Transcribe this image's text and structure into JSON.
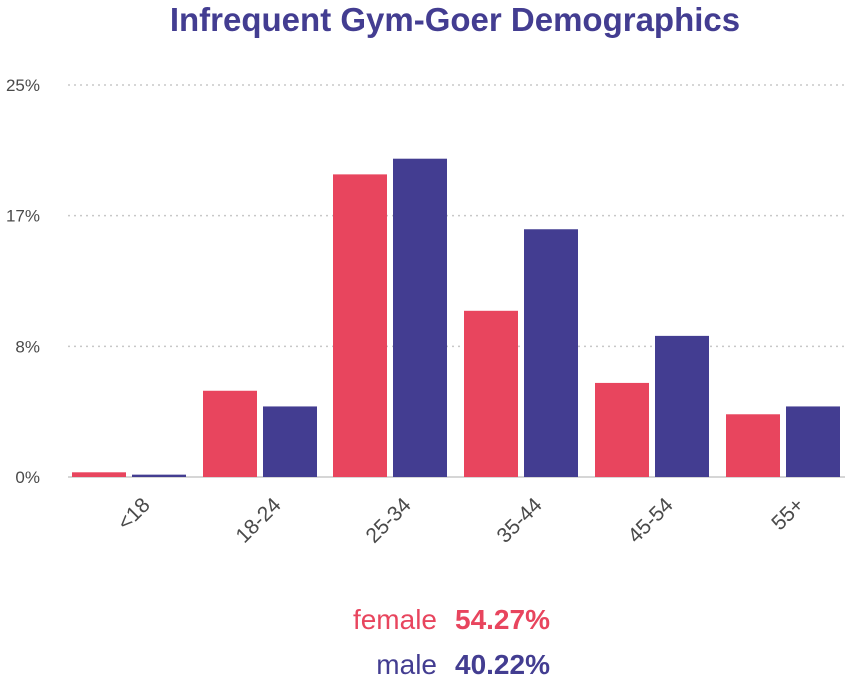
{
  "colors": {
    "female": "#e8455e",
    "male": "#433d91",
    "title": "#433d91"
  },
  "chart_data": {
    "type": "bar",
    "title": "Infrequent Gym-Goer Demographics",
    "xlabel": "",
    "ylabel": "",
    "categories": [
      "<18",
      "18-24",
      "25-34",
      "35-44",
      "45-54",
      "55+"
    ],
    "y_ticks": [
      "0%",
      "8%",
      "17%",
      "25%"
    ],
    "y_tick_values": [
      0,
      8.33,
      16.67,
      25
    ],
    "ylim": [
      0,
      25
    ],
    "grid": true,
    "legend_position": "bottom-center",
    "series": [
      {
        "name": "female",
        "values": [
          0.3,
          5.5,
          19.3,
          10.6,
          6.0,
          4.0
        ]
      },
      {
        "name": "male",
        "values": [
          0.15,
          4.5,
          20.3,
          15.8,
          9.0,
          4.5
        ]
      }
    ]
  },
  "legend": [
    {
      "label": "female",
      "value": "54.27%"
    },
    {
      "label": "male",
      "value": "40.22%"
    }
  ]
}
